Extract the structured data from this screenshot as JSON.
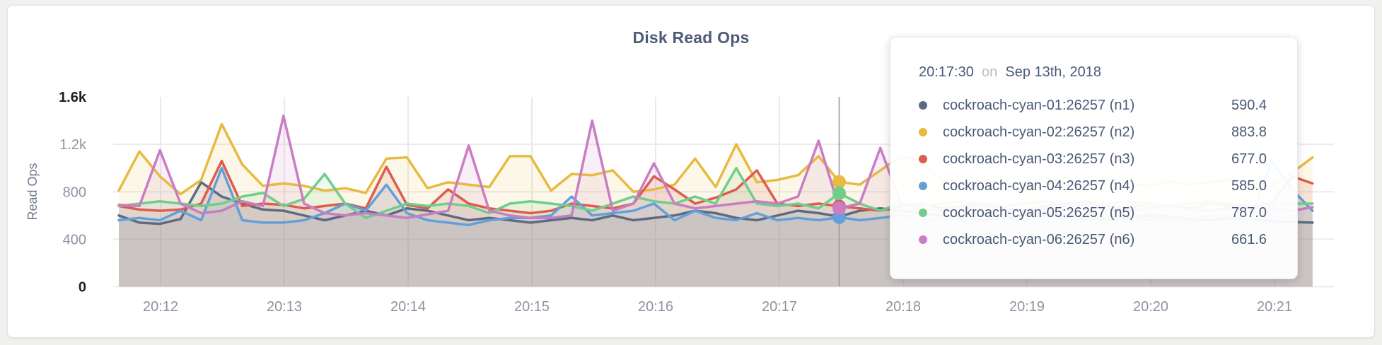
{
  "panel": {
    "title": "Disk Read Ops"
  },
  "tooltip": {
    "time": "20:17:30",
    "conjunction": "on",
    "date": "Sep 13th, 2018",
    "rows": [
      {
        "label": "cockroach-cyan-01:26257 (n1)",
        "value": "590.4",
        "color": "#5f6a81"
      },
      {
        "label": "cockroach-cyan-02:26257 (n2)",
        "value": "883.8",
        "color": "#e7ba41"
      },
      {
        "label": "cockroach-cyan-03:26257 (n3)",
        "value": "677.0",
        "color": "#dc5d4f"
      },
      {
        "label": "cockroach-cyan-04:26257 (n4)",
        "value": "585.0",
        "color": "#62a0da"
      },
      {
        "label": "cockroach-cyan-05:26257 (n5)",
        "value": "787.0",
        "color": "#6fce8c"
      },
      {
        "label": "cockroach-cyan-06:26257 (n6)",
        "value": "661.6",
        "color": "#ca7cc4"
      }
    ]
  },
  "chart_data": {
    "type": "area",
    "title": "Disk Read Ops",
    "xlabel": "",
    "ylabel": "Read Ops",
    "ylim": [
      0,
      1600
    ],
    "grid": true,
    "legend_position": "tooltip-overlay",
    "y_ticks": [
      {
        "value": 0,
        "label": "0",
        "emphasis": true
      },
      {
        "value": 400,
        "label": "400",
        "emphasis": false
      },
      {
        "value": 800,
        "label": "800",
        "emphasis": false
      },
      {
        "value": 1200,
        "label": "1.2k",
        "emphasis": false
      },
      {
        "value": 1600,
        "label": "1.6k",
        "emphasis": true
      }
    ],
    "x_ticks": [
      "20:12",
      "20:13",
      "20:14",
      "20:15",
      "20:16",
      "20:17",
      "20:18",
      "20:19",
      "20:20",
      "20:21"
    ],
    "start_time": "20:11:40",
    "interval_seconds": 10,
    "hover_index": 35,
    "hover_time": "20:17:30",
    "series": [
      {
        "name": "cockroach-cyan-01:26257 (n1)",
        "color": "#5f6a81",
        "values": [
          600,
          540,
          530,
          570,
          880,
          760,
          700,
          650,
          640,
          600,
          560,
          600,
          640,
          600,
          660,
          640,
          600,
          560,
          580,
          560,
          540,
          560,
          580,
          560,
          600,
          560,
          580,
          600,
          640,
          620,
          580,
          560,
          600,
          640,
          620,
          590.4,
          640,
          660,
          640,
          620,
          600,
          580,
          560,
          580,
          600,
          620,
          600,
          580,
          560,
          580,
          600,
          590,
          570,
          560,
          580,
          570,
          550,
          545,
          540
        ]
      },
      {
        "name": "cockroach-cyan-02:26257 (n2)",
        "color": "#e7ba41",
        "values": [
          810,
          1140,
          930,
          780,
          900,
          1370,
          1030,
          850,
          870,
          850,
          810,
          830,
          790,
          1080,
          1090,
          830,
          880,
          860,
          840,
          1100,
          1100,
          810,
          950,
          940,
          980,
          800,
          820,
          860,
          1080,
          840,
          1200,
          880,
          900,
          940,
          1100,
          883.8,
          860,
          980,
          1100,
          1060,
          900,
          860,
          900,
          870,
          840,
          880,
          920,
          860,
          900,
          870,
          850,
          890,
          860,
          880,
          900,
          870,
          840,
          960,
          1090
        ]
      },
      {
        "name": "cockroach-cyan-03:26257 (n3)",
        "color": "#dc5d4f",
        "values": [
          680,
          650,
          640,
          650,
          700,
          1060,
          680,
          700,
          690,
          660,
          680,
          700,
          660,
          1010,
          690,
          660,
          820,
          700,
          660,
          640,
          620,
          640,
          700,
          680,
          660,
          700,
          930,
          820,
          700,
          750,
          820,
          980,
          700,
          680,
          700,
          677,
          660,
          640,
          680,
          700,
          660,
          680,
          700,
          660,
          640,
          680,
          700,
          720,
          680,
          660,
          700,
          680,
          660,
          700,
          680,
          660,
          700,
          930,
          870
        ]
      },
      {
        "name": "cockroach-cyan-04:26257 (n4)",
        "color": "#62a0da",
        "values": [
          560,
          580,
          560,
          640,
          560,
          1000,
          560,
          540,
          540,
          560,
          620,
          700,
          640,
          860,
          620,
          560,
          540,
          520,
          560,
          580,
          580,
          600,
          760,
          600,
          620,
          640,
          700,
          560,
          640,
          580,
          560,
          620,
          560,
          580,
          560,
          585,
          560,
          580,
          600,
          560,
          580,
          560,
          600,
          580,
          560,
          600,
          580,
          560,
          580,
          600,
          560,
          580,
          560,
          600,
          580,
          560,
          1060,
          820,
          640
        ]
      },
      {
        "name": "cockroach-cyan-05:26257 (n5)",
        "color": "#6fce8c",
        "values": [
          680,
          700,
          720,
          700,
          680,
          700,
          760,
          790,
          680,
          740,
          950,
          700,
          580,
          640,
          700,
          680,
          700,
          680,
          620,
          700,
          720,
          700,
          680,
          640,
          700,
          760,
          720,
          700,
          760,
          700,
          1000,
          700,
          680,
          700,
          660,
          787,
          700,
          640,
          700,
          680,
          700,
          720,
          700,
          680,
          700,
          720,
          700,
          680,
          700,
          720,
          700,
          680,
          700,
          720,
          700,
          680,
          700,
          700,
          700
        ]
      },
      {
        "name": "cockroach-cyan-06:26257 (n6)",
        "color": "#ca7cc4",
        "values": [
          690,
          680,
          1150,
          700,
          620,
          640,
          720,
          680,
          1440,
          700,
          620,
          600,
          620,
          600,
          580,
          610,
          640,
          1190,
          640,
          600,
          580,
          580,
          600,
          1400,
          640,
          700,
          1040,
          700,
          660,
          680,
          700,
          720,
          700,
          760,
          1230,
          661.6,
          700,
          1170,
          700,
          660,
          640,
          660,
          680,
          660,
          640,
          660,
          680,
          700,
          660,
          640,
          660,
          680,
          660,
          640,
          660,
          680,
          660,
          640,
          670
        ]
      }
    ]
  }
}
